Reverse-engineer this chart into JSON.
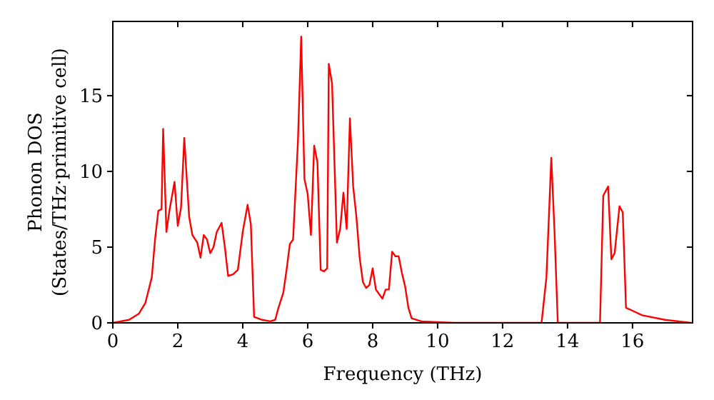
{
  "chart_data": {
    "type": "line",
    "xlabel": "Frequency (THz)",
    "ylabel": "Phonon DOS\n(States/THz·primitive cell)",
    "xlim": [
      0,
      17.85
    ],
    "ylim": [
      0,
      19.9
    ],
    "xticks": [
      0,
      2,
      4,
      6,
      8,
      10,
      12,
      14,
      16
    ],
    "yticks": [
      0,
      5,
      10,
      15
    ],
    "grid": false,
    "series": [
      {
        "color": "#ff0000",
        "x": [
          0,
          0.5,
          0.8,
          1.0,
          1.2,
          1.3,
          1.4,
          1.5,
          1.55,
          1.65,
          1.75,
          1.9,
          2.0,
          2.1,
          2.2,
          2.35,
          2.45,
          2.6,
          2.7,
          2.8,
          2.9,
          3.0,
          3.1,
          3.2,
          3.35,
          3.45,
          3.55,
          3.7,
          3.85,
          4.0,
          4.15,
          4.25,
          4.35,
          4.6,
          4.85,
          5.0,
          5.1,
          5.25,
          5.35,
          5.45,
          5.55,
          5.7,
          5.8,
          5.9,
          6.0,
          6.1,
          6.2,
          6.3,
          6.4,
          6.5,
          6.6,
          6.65,
          6.75,
          6.9,
          7.0,
          7.1,
          7.2,
          7.3,
          7.4,
          7.5,
          7.6,
          7.7,
          7.8,
          7.9,
          8.0,
          8.1,
          8.2,
          8.3,
          8.4,
          8.5,
          8.6,
          8.7,
          8.8,
          8.9,
          9.0,
          9.1,
          9.2,
          9.5,
          10.5,
          13.2,
          13.35,
          13.5,
          13.6,
          13.7,
          15.0,
          15.1,
          15.25,
          15.35,
          15.45,
          15.6,
          15.7,
          15.8,
          16.0,
          16.3,
          17.0,
          17.8
        ],
        "values": [
          0,
          0.2,
          0.6,
          1.3,
          3.0,
          5.5,
          7.4,
          7.5,
          12.8,
          6.0,
          7.5,
          9.3,
          6.4,
          7.6,
          12.2,
          7.0,
          5.8,
          5.3,
          4.3,
          5.8,
          5.5,
          4.6,
          5.0,
          6.0,
          6.6,
          5.0,
          3.1,
          3.2,
          3.5,
          6.0,
          7.8,
          6.5,
          0.4,
          0.2,
          0.1,
          0.2,
          1.0,
          2.0,
          3.5,
          5.2,
          5.5,
          12.0,
          18.9,
          9.5,
          8.5,
          5.8,
          11.7,
          10.6,
          3.5,
          3.4,
          3.6,
          17.1,
          15.8,
          5.3,
          6.2,
          8.6,
          6.2,
          13.5,
          9.0,
          7.0,
          4.3,
          2.7,
          2.3,
          2.5,
          3.6,
          2.2,
          1.9,
          1.6,
          2.2,
          2.2,
          4.7,
          4.4,
          4.4,
          3.3,
          2.4,
          1.0,
          0.3,
          0.1,
          0,
          0,
          3.0,
          10.9,
          6.0,
          0,
          0,
          8.4,
          9.0,
          4.2,
          4.6,
          7.7,
          7.3,
          1.0,
          0.8,
          0.5,
          0.2,
          0
        ]
      }
    ]
  }
}
